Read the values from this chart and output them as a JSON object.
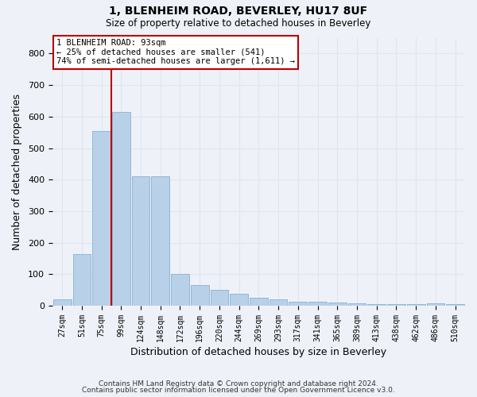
{
  "title1": "1, BLENHEIM ROAD, BEVERLEY, HU17 8UF",
  "title2": "Size of property relative to detached houses in Beverley",
  "xlabel": "Distribution of detached houses by size in Beverley",
  "ylabel": "Number of detached properties",
  "footnote1": "Contains HM Land Registry data © Crown copyright and database right 2024.",
  "footnote2": "Contains public sector information licensed under the Open Government Licence v3.0.",
  "categories": [
    "27sqm",
    "51sqm",
    "75sqm",
    "99sqm",
    "124sqm",
    "148sqm",
    "172sqm",
    "196sqm",
    "220sqm",
    "244sqm",
    "269sqm",
    "293sqm",
    "317sqm",
    "341sqm",
    "365sqm",
    "389sqm",
    "413sqm",
    "438sqm",
    "462sqm",
    "486sqm",
    "510sqm"
  ],
  "bar_values": [
    20,
    165,
    555,
    615,
    410,
    410,
    100,
    65,
    50,
    38,
    25,
    20,
    12,
    12,
    10,
    8,
    5,
    5,
    5,
    8,
    5
  ],
  "bar_color": "#b8d0e8",
  "bar_edge_color": "#90b8d8",
  "background_color": "#eef2f8",
  "grid_color": "#dde5f0",
  "red_line_color": "#bb0000",
  "annotation_line1": "1 BLENHEIM ROAD: 93sqm",
  "annotation_line2": "← 25% of detached houses are smaller (541)",
  "annotation_line3": "74% of semi-detached houses are larger (1,611) →",
  "annotation_box_facecolor": "#ffffff",
  "annotation_box_edgecolor": "#bb0000",
  "ylim": [
    0,
    850
  ],
  "yticks": [
    0,
    100,
    200,
    300,
    400,
    500,
    600,
    700,
    800
  ],
  "red_line_x": 2.5
}
